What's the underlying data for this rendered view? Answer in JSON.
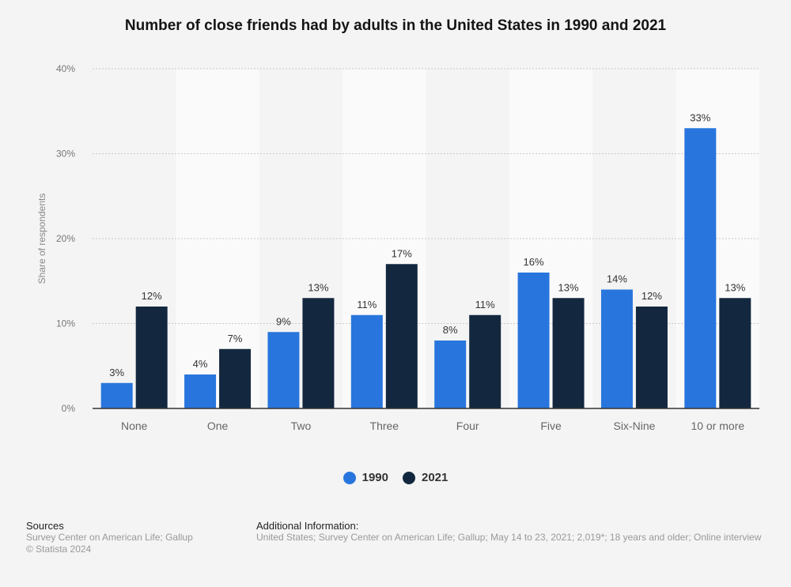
{
  "title": "Number of close friends had by adults in the United States in 1990 and 2021",
  "chart_data": {
    "type": "bar",
    "title": "Number of close friends had by adults in the United States in 1990 and 2021",
    "xlabel": "",
    "ylabel": "Share of respondents",
    "ylim": [
      0,
      40
    ],
    "yticks": [
      0,
      10,
      20,
      30,
      40
    ],
    "ytick_labels": [
      "0%",
      "10%",
      "20%",
      "30%",
      "40%"
    ],
    "grid": true,
    "legend_position": "bottom-center",
    "categories": [
      "None",
      "One",
      "Two",
      "Three",
      "Four",
      "Five",
      "Six-Nine",
      "10 or more"
    ],
    "series": [
      {
        "name": "1990",
        "color": "#2876dd",
        "values": [
          3,
          4,
          9,
          11,
          8,
          16,
          14,
          33
        ],
        "labels": [
          "3%",
          "4%",
          "9%",
          "11%",
          "8%",
          "16%",
          "14%",
          "33%"
        ]
      },
      {
        "name": "2021",
        "color": "#13283f",
        "values": [
          12,
          7,
          13,
          17,
          11,
          13,
          12,
          13
        ],
        "labels": [
          "12%",
          "7%",
          "13%",
          "17%",
          "11%",
          "13%",
          "12%",
          "13%"
        ]
      }
    ]
  },
  "legend": [
    {
      "label": "1990",
      "color": "#2876dd"
    },
    {
      "label": "2021",
      "color": "#13283f"
    }
  ],
  "footer": {
    "sources_heading": "Sources",
    "sources_text": "Survey Center on American Life; Gallup",
    "copyright": "© Statista 2024",
    "additional_heading": "Additional Information:",
    "additional_text": "United States; Survey Center on American Life; Gallup; May 14 to 23, 2021; 2,019*; 18 years and older; Online interview"
  }
}
